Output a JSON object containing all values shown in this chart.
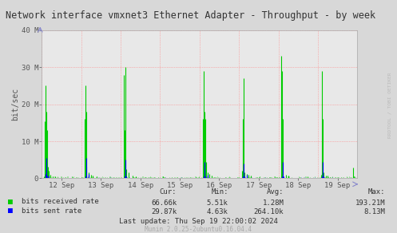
{
  "title": "Network interface vmxnet3 Ethernet Adapter - Throughput - by week",
  "ylabel": "bit/sec",
  "bg_color": "#d8d8d8",
  "plot_bg_color": "#e8e8e8",
  "grid_color": "#ff8080",
  "y_lim": [
    0,
    40000000
  ],
  "y_ticks": [
    0,
    10000000,
    20000000,
    30000000,
    40000000
  ],
  "y_tick_labels": [
    "0",
    "10 M",
    "20 M",
    "30 M",
    "40 M"
  ],
  "x_lim": [
    0,
    8.0
  ],
  "x_tick_positions": [
    0.5,
    1.5,
    2.5,
    3.5,
    4.5,
    5.5,
    6.5,
    7.5
  ],
  "x_tick_labels": [
    "12 Sep",
    "13 Sep",
    "14 Sep",
    "15 Sep",
    "16 Sep",
    "17 Sep",
    "18 Sep",
    "19 Sep"
  ],
  "vgrid_x": [
    0,
    1.0,
    2.0,
    3.0,
    4.0,
    5.0,
    6.0,
    7.0,
    8.0
  ],
  "green_color": "#00cc00",
  "blue_color": "#0000ff",
  "title_color": "#333333",
  "axis_label_color": "#555555",
  "tick_color": "#555555",
  "watermark": "RRDTOOL / TOBI OETIKER",
  "watermark_color": "#bbbbbb",
  "legend_green_label": "bits received rate",
  "legend_blue_label": "bits sent rate",
  "cur_label": "Cur:",
  "min_label": "Min:",
  "avg_label": "Avg:",
  "max_label": "Max:",
  "recv_cur": "66.66k",
  "recv_min": "5.51k",
  "recv_avg": "1.28M",
  "recv_max": "193.21M",
  "sent_cur": "29.87k",
  "sent_min": "4.63k",
  "sent_avg": "264.10k",
  "sent_max": "8.13M",
  "last_update": "Last update: Thu Sep 19 22:00:02 2024",
  "munin_version": "Munin 2.0.25-2ubuntu0.16.04.4",
  "recv_spikes": [
    [
      0.05,
      500000
    ],
    [
      0.08,
      15500000
    ],
    [
      0.1,
      25000000
    ],
    [
      0.12,
      18000000
    ],
    [
      0.14,
      13000000
    ],
    [
      0.16,
      3000000
    ],
    [
      0.18,
      2000000
    ],
    [
      0.22,
      1000000
    ],
    [
      0.28,
      600000
    ],
    [
      0.35,
      500000
    ],
    [
      1.08,
      16000000
    ],
    [
      1.1,
      25000000
    ],
    [
      1.12,
      18000000
    ],
    [
      1.14,
      3000000
    ],
    [
      1.2,
      1500000
    ],
    [
      1.25,
      1000000
    ],
    [
      1.3,
      800000
    ],
    [
      1.4,
      600000
    ],
    [
      2.08,
      28000000
    ],
    [
      2.1,
      13000000
    ],
    [
      2.12,
      30000000
    ],
    [
      2.15,
      2500000
    ],
    [
      2.2,
      1500000
    ],
    [
      2.3,
      800000
    ],
    [
      2.38,
      600000
    ],
    [
      3.08,
      500000
    ],
    [
      3.12,
      300000
    ],
    [
      4.08,
      16000000
    ],
    [
      4.1,
      29000000
    ],
    [
      4.12,
      18000000
    ],
    [
      4.14,
      16000000
    ],
    [
      4.16,
      4500000
    ],
    [
      4.2,
      1500000
    ],
    [
      4.25,
      1200000
    ],
    [
      4.3,
      800000
    ],
    [
      5.08,
      2000000
    ],
    [
      5.1,
      16000000
    ],
    [
      5.12,
      27000000
    ],
    [
      5.14,
      1500000
    ],
    [
      5.2,
      1200000
    ],
    [
      5.25,
      1000000
    ],
    [
      5.3,
      800000
    ],
    [
      6.08,
      33000000
    ],
    [
      6.1,
      29000000
    ],
    [
      6.12,
      16000000
    ],
    [
      6.2,
      1000000
    ],
    [
      6.25,
      800000
    ],
    [
      7.08,
      1000000
    ],
    [
      7.1,
      29000000
    ],
    [
      7.12,
      16000000
    ],
    [
      7.14,
      1500000
    ],
    [
      7.2,
      800000
    ],
    [
      7.25,
      700000
    ],
    [
      7.9,
      2800000
    ],
    [
      7.92,
      500000
    ]
  ],
  "sent_spikes": [
    [
      0.1,
      1200000
    ],
    [
      0.12,
      5500000
    ],
    [
      0.14,
      800000
    ],
    [
      0.18,
      700000
    ],
    [
      1.1,
      500000
    ],
    [
      1.12,
      5500000
    ],
    [
      1.14,
      700000
    ],
    [
      1.2,
      1200000
    ],
    [
      2.1,
      500000
    ],
    [
      2.12,
      5000000
    ],
    [
      2.14,
      600000
    ],
    [
      4.1,
      500000
    ],
    [
      4.12,
      4500000
    ],
    [
      4.14,
      600000
    ],
    [
      4.2,
      1000000
    ],
    [
      5.1,
      600000
    ],
    [
      5.12,
      4000000
    ],
    [
      5.14,
      500000
    ],
    [
      5.2,
      1000000
    ],
    [
      6.1,
      500000
    ],
    [
      6.12,
      4500000
    ],
    [
      6.14,
      500000
    ],
    [
      7.1,
      500000
    ],
    [
      7.12,
      4500000
    ],
    [
      7.14,
      500000
    ]
  ]
}
